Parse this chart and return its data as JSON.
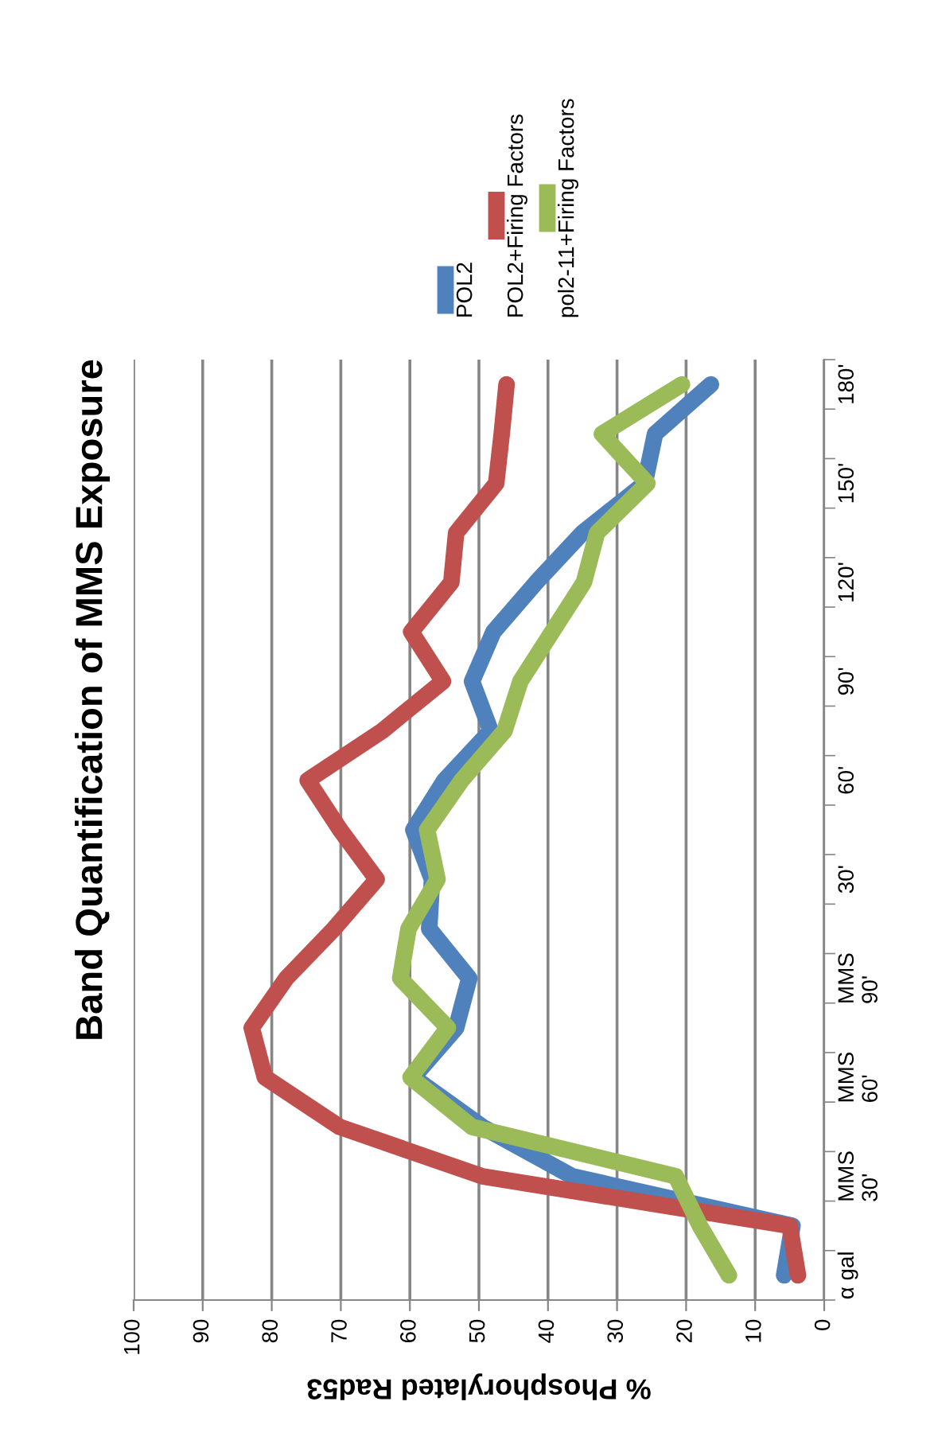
{
  "chart_data": {
    "type": "line",
    "orientation": "horizontal",
    "title": "Band Quantification of MMS Exposure",
    "xlabel": "% Phosphorylated Rad53",
    "categories": [
      "180'",
      null,
      "150'",
      null,
      "120'",
      null,
      "90'",
      null,
      "60'",
      null,
      "30'",
      null,
      "MMS\n90'",
      null,
      "MMS\n60'",
      null,
      "MMS\n30'",
      null,
      "α gal"
    ],
    "series": [
      {
        "name": "POL2",
        "color": "#4f81bd",
        "values": [
          16.4,
          24.5,
          26,
          35,
          41.7,
          47.9,
          51,
          48.3,
          55,
          59.5,
          56.8,
          57.2,
          51.4,
          53.3,
          59.5,
          49.5,
          36.5,
          4.6,
          5.8
        ]
      },
      {
        "name": "POL2+Firing Factors",
        "color": "#c0504d",
        "values": [
          46,
          46.7,
          47.5,
          53.3,
          54,
          59.8,
          55.2,
          64,
          74.8,
          70.1,
          64.8,
          71,
          77.9,
          82.9,
          81,
          70.2,
          49.5,
          5.0,
          3.8
        ]
      },
      {
        "name": "pol2-11+Firing Factors",
        "color": "#9bbb59",
        "values": [
          20.6,
          32.2,
          25.6,
          32.9,
          34.8,
          39.4,
          44,
          46.3,
          52.5,
          57.5,
          56,
          60.2,
          61.4,
          54.5,
          59.9,
          51,
          21.5,
          18,
          13.8
        ]
      }
    ],
    "xlim": [
      100,
      0
    ],
    "xticks": [
      0,
      10,
      20,
      30,
      40,
      50,
      60,
      70,
      80,
      90,
      100
    ],
    "grid": "x",
    "legend": "top",
    "marker": "none",
    "line_style": "solid"
  }
}
